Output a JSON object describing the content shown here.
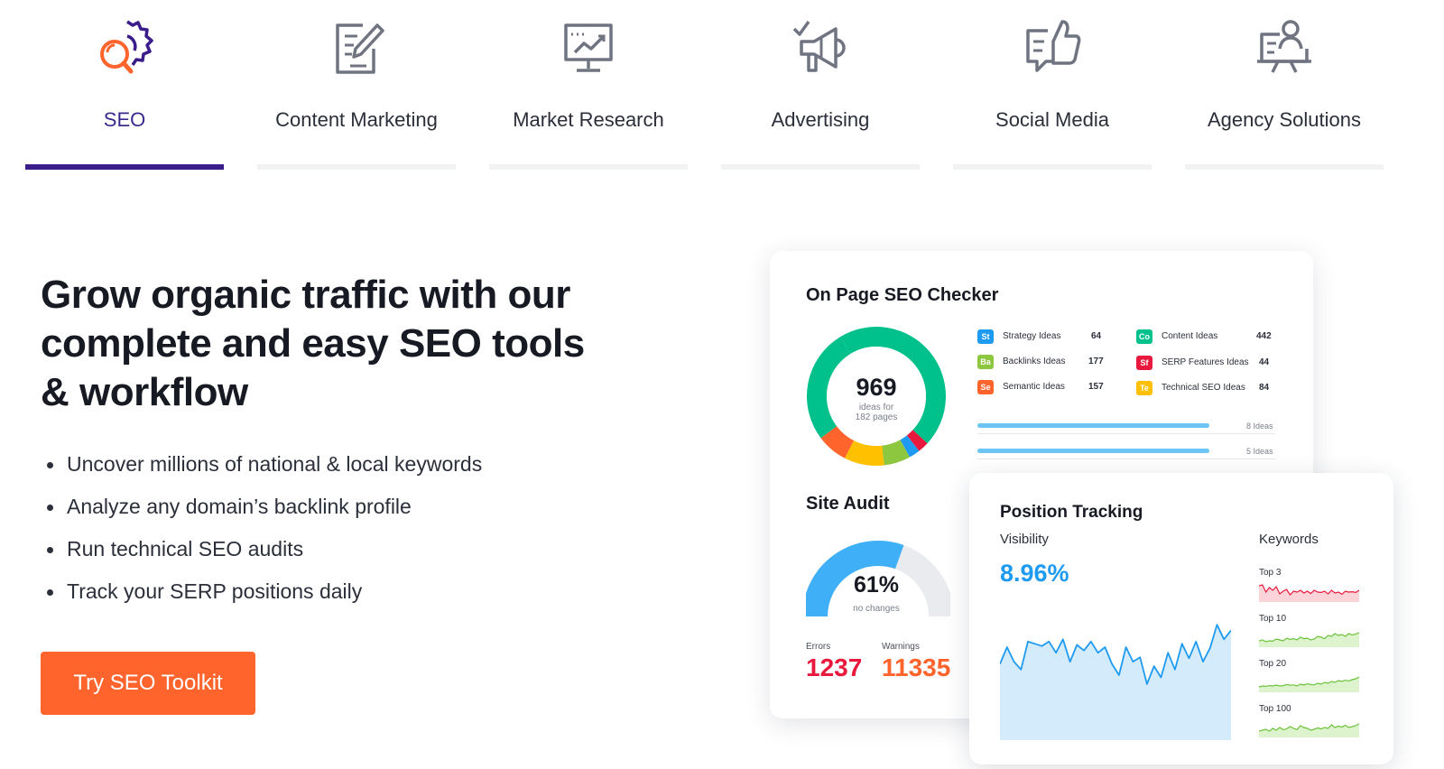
{
  "tabs": [
    {
      "label": "SEO",
      "icon": "seo-gear-search-icon",
      "active": true
    },
    {
      "label": "Content Marketing",
      "icon": "pencil-document-icon",
      "active": false
    },
    {
      "label": "Market Research",
      "icon": "monitor-chart-icon",
      "active": false
    },
    {
      "label": "Advertising",
      "icon": "megaphone-icon",
      "active": false
    },
    {
      "label": "Social Media",
      "icon": "thumbs-up-chat-icon",
      "active": false
    },
    {
      "label": "Agency Solutions",
      "icon": "presenter-board-icon",
      "active": false
    }
  ],
  "colors": {
    "active_tab": "#3a1c8a",
    "cta": "#ff642d",
    "errors": "#e8193c",
    "warnings": "#ff642d",
    "visibility": "#1e9bf0"
  },
  "hero": {
    "headline": "Grow organic traffic with our complete and easy SEO tools & workflow",
    "bullets": [
      "Uncover millions of national & local keywords",
      "Analyze any domain’s backlink profile",
      "Run technical SEO audits",
      "Track your SERP positions daily"
    ],
    "cta_label": "Try SEO Toolkit"
  },
  "on_page": {
    "title": "On Page SEO Checker",
    "total": "969",
    "total_sub1": "ideas for",
    "total_sub2": "182 pages",
    "ideas_left": [
      {
        "badge": "St",
        "name": "Strategy Ideas",
        "value": "64",
        "color": "#1e9bf0"
      },
      {
        "badge": "Ba",
        "name": "Backlinks Ideas",
        "value": "177",
        "color": "#8dc63f"
      },
      {
        "badge": "Se",
        "name": "Semantic Ideas",
        "value": "157",
        "color": "#ff642d"
      }
    ],
    "ideas_right": [
      {
        "badge": "Co",
        "name": "Content Ideas",
        "value": "442",
        "color": "#00c08b"
      },
      {
        "badge": "Sf",
        "name": "SERP Features Ideas",
        "value": "44",
        "color": "#e8193c"
      },
      {
        "badge": "Te",
        "name": "Technical SEO Ideas",
        "value": "84",
        "color": "#ffc000"
      }
    ],
    "progress": [
      {
        "label": "8 Ideas",
        "fraction": 0.78
      },
      {
        "label": "5 Ideas",
        "fraction": 0.78
      }
    ],
    "donut_segments": [
      {
        "value": 442,
        "color": "#00c08b"
      },
      {
        "value": 25,
        "color": "#e8193c"
      },
      {
        "value": 25,
        "color": "#1e9bf0"
      },
      {
        "value": 60,
        "color": "#8dc63f"
      },
      {
        "value": 90,
        "color": "#ffc000"
      },
      {
        "value": 70,
        "color": "#ff642d"
      },
      {
        "value": 257,
        "color": "#00c08b"
      }
    ]
  },
  "site_audit": {
    "title": "Site Audit",
    "percent": "61%",
    "percent_value": 0.61,
    "sub": "no changes",
    "errors_label": "Errors",
    "errors_value": "1237",
    "warnings_label": "Warnings",
    "warnings_value": "11335"
  },
  "position_tracking": {
    "title": "Position Tracking",
    "visibility_label": "Visibility",
    "visibility_value": "8.96%",
    "keywords_label": "Keywords",
    "keyword_groups": [
      {
        "label": "Top 3",
        "color": "#e8193c",
        "fill": "#fbd3d9"
      },
      {
        "label": "Top 10",
        "color": "#6cc23a",
        "fill": "#ddf3cd"
      },
      {
        "label": "Top 20",
        "color": "#6cc23a",
        "fill": "#ddf3cd"
      },
      {
        "label": "Top 100",
        "color": "#6cc23a",
        "fill": "#ddf3cd"
      }
    ],
    "visibility_series": [
      0.6,
      0.75,
      0.62,
      0.55,
      0.8,
      0.78,
      0.76,
      0.8,
      0.7,
      0.82,
      0.62,
      0.77,
      0.72,
      0.8,
      0.7,
      0.75,
      0.6,
      0.5,
      0.75,
      0.62,
      0.66,
      0.42,
      0.58,
      0.48,
      0.7,
      0.55,
      0.78,
      0.65,
      0.8,
      0.62,
      0.74,
      0.95,
      0.82,
      0.9
    ]
  }
}
